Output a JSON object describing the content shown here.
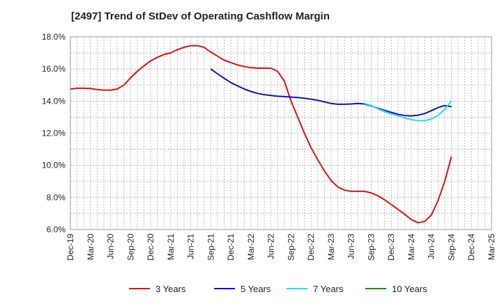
{
  "chart_data": {
    "type": "line",
    "title": "[2497]  Trend of StDev of Operating Cashflow Margin",
    "xlabel": "",
    "ylabel": "",
    "x_ticks": [
      "Dec-19",
      "Mar-20",
      "Jun-20",
      "Sep-20",
      "Dec-20",
      "Mar-21",
      "Jun-21",
      "Sep-21",
      "Dec-21",
      "Mar-22",
      "Jun-22",
      "Sep-22",
      "Dec-22",
      "Mar-23",
      "Jun-23",
      "Sep-23",
      "Dec-23",
      "Mar-24",
      "Jun-24",
      "Sep-24",
      "Dec-24",
      "Mar-25"
    ],
    "y_ticks": [
      "6.0%",
      "8.0%",
      "10.0%",
      "12.0%",
      "14.0%",
      "16.0%",
      "18.0%"
    ],
    "ylim": [
      6,
      18
    ],
    "grid": true,
    "legend_position": "bottom",
    "series": [
      {
        "name": "3 Years",
        "color": "#dd1111",
        "points": [
          [
            "Dec-19",
            14.75
          ],
          [
            "Jan-20",
            14.8
          ],
          [
            "Feb-20",
            14.8
          ],
          [
            "Mar-20",
            14.78
          ],
          [
            "Apr-20",
            14.72
          ],
          [
            "May-20",
            14.68
          ],
          [
            "Jun-20",
            14.68
          ],
          [
            "Jul-20",
            14.75
          ],
          [
            "Aug-20",
            15.0
          ],
          [
            "Sep-20",
            15.45
          ],
          [
            "Oct-20",
            15.85
          ],
          [
            "Nov-20",
            16.2
          ],
          [
            "Dec-20",
            16.5
          ],
          [
            "Jan-21",
            16.72
          ],
          [
            "Feb-21",
            16.9
          ],
          [
            "Mar-21",
            17.0
          ],
          [
            "Apr-21",
            17.2
          ],
          [
            "May-21",
            17.35
          ],
          [
            "Jun-21",
            17.45
          ],
          [
            "Jul-21",
            17.45
          ],
          [
            "Aug-21",
            17.35
          ],
          [
            "Sep-21",
            17.05
          ],
          [
            "Oct-21",
            16.8
          ],
          [
            "Nov-21",
            16.55
          ],
          [
            "Dec-21",
            16.4
          ],
          [
            "Jan-22",
            16.25
          ],
          [
            "Feb-22",
            16.15
          ],
          [
            "Mar-22",
            16.08
          ],
          [
            "Apr-22",
            16.05
          ],
          [
            "May-22",
            16.05
          ],
          [
            "Jun-22",
            16.05
          ],
          [
            "Jul-22",
            15.85
          ],
          [
            "Aug-22",
            15.25
          ],
          [
            "Sep-22",
            14.0
          ],
          [
            "Oct-22",
            13.0
          ],
          [
            "Nov-22",
            12.0
          ],
          [
            "Dec-22",
            11.1
          ],
          [
            "Jan-23",
            10.35
          ],
          [
            "Feb-23",
            9.65
          ],
          [
            "Mar-23",
            9.05
          ],
          [
            "Apr-23",
            8.65
          ],
          [
            "May-23",
            8.45
          ],
          [
            "Jun-23",
            8.38
          ],
          [
            "Jul-23",
            8.38
          ],
          [
            "Aug-23",
            8.38
          ],
          [
            "Sep-23",
            8.28
          ],
          [
            "Oct-23",
            8.1
          ],
          [
            "Nov-23",
            7.85
          ],
          [
            "Dec-23",
            7.55
          ],
          [
            "Jan-24",
            7.25
          ],
          [
            "Feb-24",
            6.95
          ],
          [
            "Mar-24",
            6.62
          ],
          [
            "Apr-24",
            6.42
          ],
          [
            "May-24",
            6.5
          ],
          [
            "Jun-24",
            6.9
          ],
          [
            "Jul-24",
            7.8
          ],
          [
            "Aug-24",
            9.0
          ],
          [
            "Sep-24",
            10.55
          ]
        ]
      },
      {
        "name": "5 Years",
        "color": "#1111bb",
        "points": [
          [
            "Sep-21",
            16.0
          ],
          [
            "Oct-21",
            15.7
          ],
          [
            "Nov-21",
            15.42
          ],
          [
            "Dec-21",
            15.15
          ],
          [
            "Jan-22",
            14.95
          ],
          [
            "Feb-22",
            14.75
          ],
          [
            "Mar-22",
            14.6
          ],
          [
            "Apr-22",
            14.48
          ],
          [
            "May-22",
            14.4
          ],
          [
            "Jun-22",
            14.35
          ],
          [
            "Jul-22",
            14.3
          ],
          [
            "Aug-22",
            14.28
          ],
          [
            "Sep-22",
            14.25
          ],
          [
            "Oct-22",
            14.22
          ],
          [
            "Nov-22",
            14.18
          ],
          [
            "Dec-22",
            14.12
          ],
          [
            "Jan-23",
            14.05
          ],
          [
            "Feb-23",
            13.95
          ],
          [
            "Mar-23",
            13.85
          ],
          [
            "Apr-23",
            13.8
          ],
          [
            "May-23",
            13.8
          ],
          [
            "Jun-23",
            13.82
          ],
          [
            "Jul-23",
            13.85
          ],
          [
            "Aug-23",
            13.82
          ],
          [
            "Sep-23",
            13.7
          ],
          [
            "Oct-23",
            13.55
          ],
          [
            "Nov-23",
            13.42
          ],
          [
            "Dec-23",
            13.3
          ],
          [
            "Jan-24",
            13.18
          ],
          [
            "Feb-24",
            13.1
          ],
          [
            "Mar-24",
            13.08
          ],
          [
            "Apr-24",
            13.12
          ],
          [
            "May-24",
            13.22
          ],
          [
            "Jun-24",
            13.4
          ],
          [
            "Jul-24",
            13.6
          ],
          [
            "Aug-24",
            13.72
          ],
          [
            "Sep-24",
            13.65
          ]
        ]
      },
      {
        "name": "7 Years",
        "color": "#22ddee",
        "points": [
          [
            "Aug-23",
            13.85
          ],
          [
            "Sep-23",
            13.72
          ],
          [
            "Oct-23",
            13.52
          ],
          [
            "Nov-23",
            13.35
          ],
          [
            "Dec-23",
            13.2
          ],
          [
            "Jan-24",
            13.08
          ],
          [
            "Feb-24",
            12.95
          ],
          [
            "Mar-24",
            12.85
          ],
          [
            "Apr-24",
            12.78
          ],
          [
            "May-24",
            12.78
          ],
          [
            "Jun-24",
            12.88
          ],
          [
            "Jul-24",
            13.1
          ],
          [
            "Aug-24",
            13.5
          ],
          [
            "Sep-24",
            14.0
          ]
        ]
      },
      {
        "name": "10 Years",
        "color": "#228822",
        "points": []
      }
    ]
  }
}
